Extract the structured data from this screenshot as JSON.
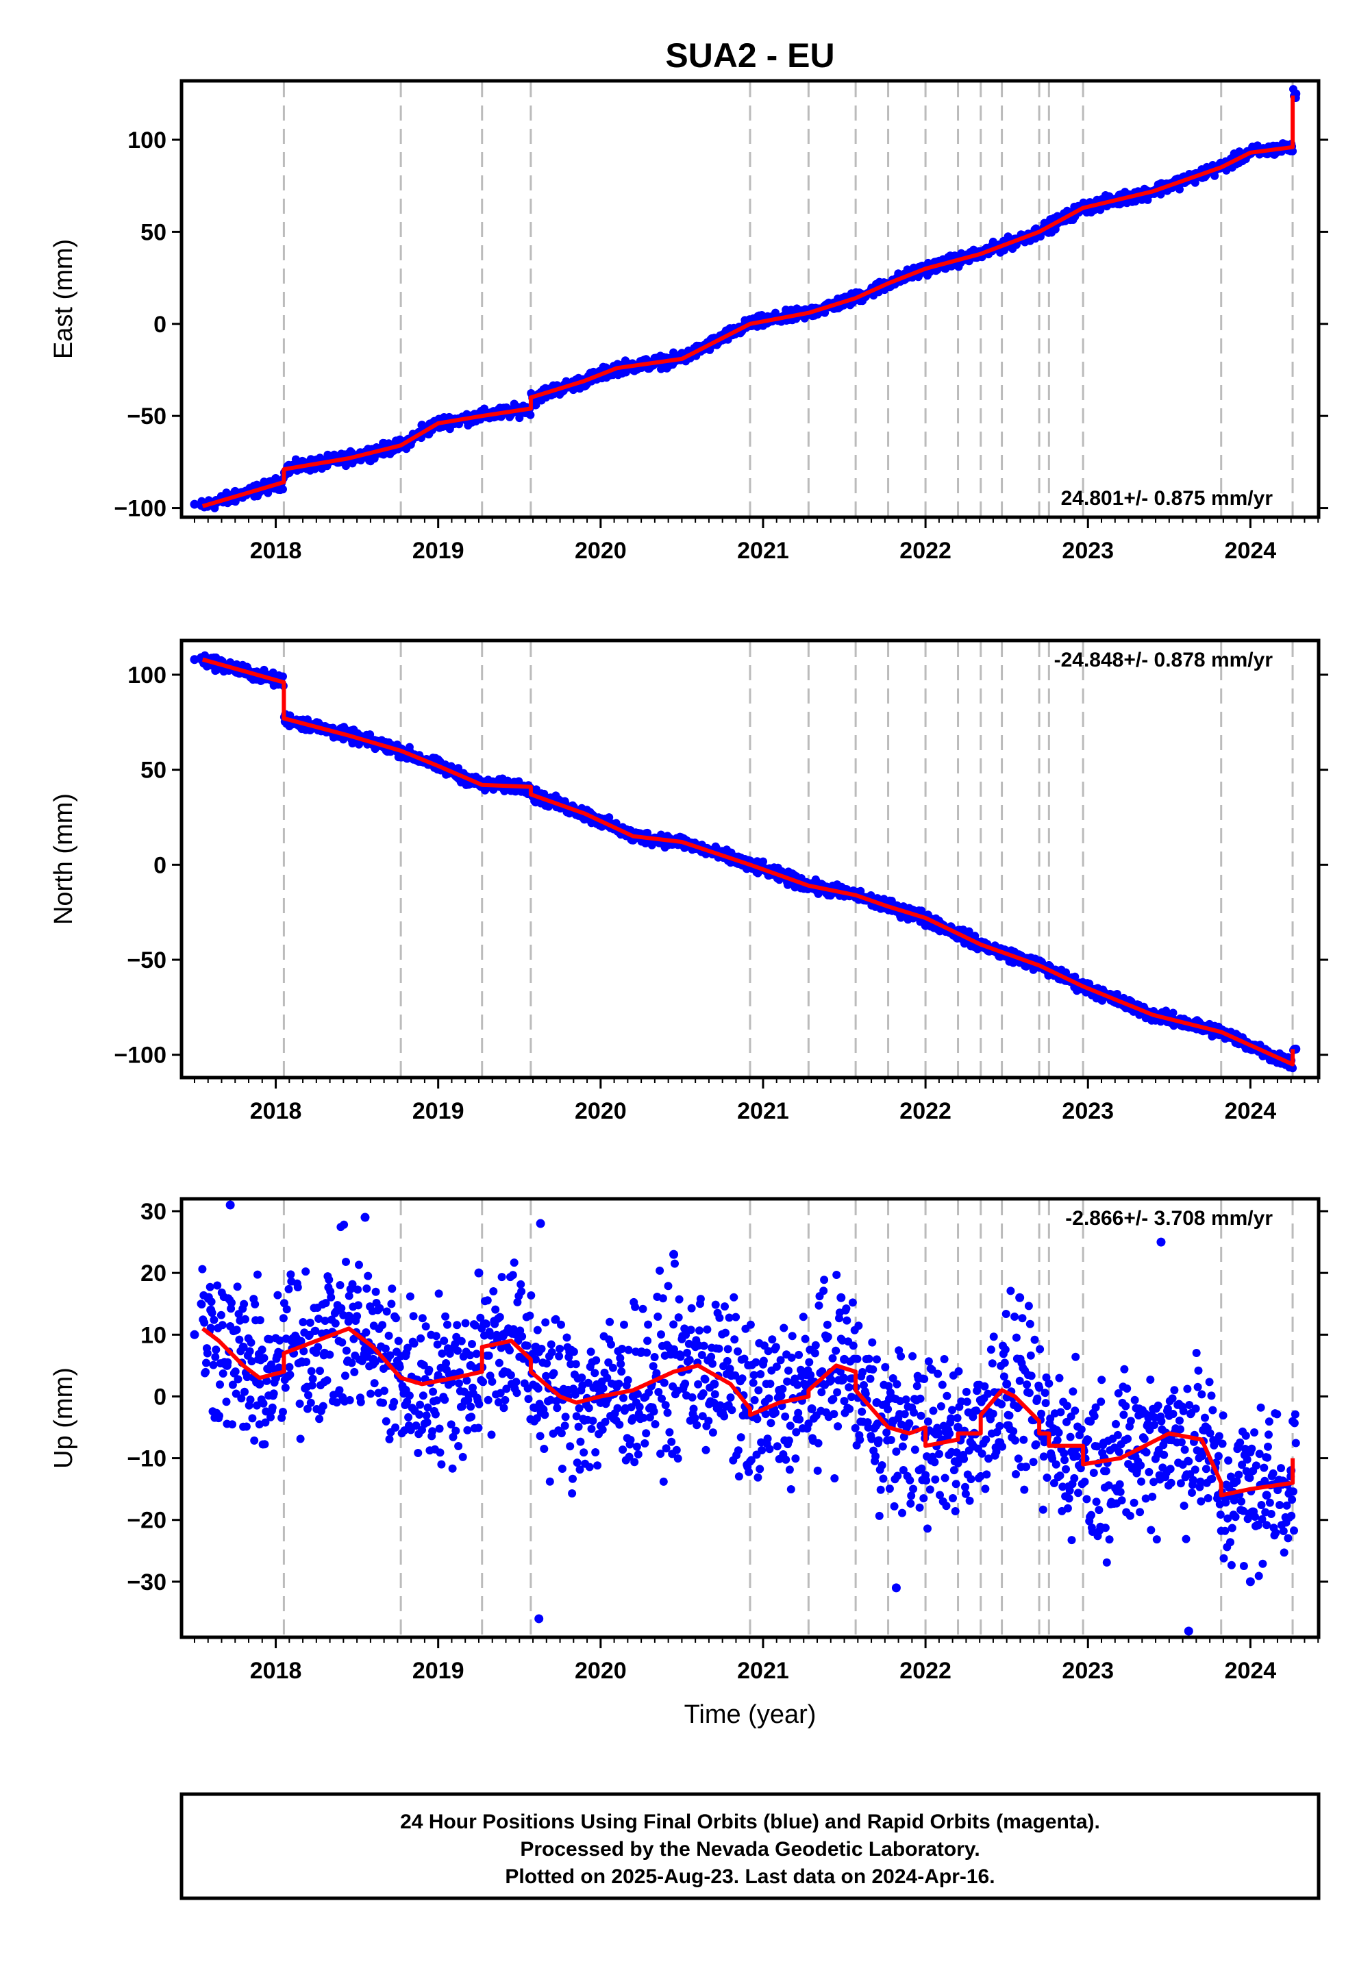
{
  "title": "SUA2 - EU",
  "colors": {
    "final_points": "#0000ff",
    "model_line": "#ff0000",
    "event_lines": "#bbbbbb",
    "frame": "#000000"
  },
  "x_axis": {
    "label": "Time (year)",
    "range": [
      2017.42,
      2024.42
    ],
    "ticks": [
      "2018",
      "2019",
      "2020",
      "2021",
      "2022",
      "2023",
      "2024"
    ]
  },
  "event_epochs": [
    2018.05,
    2018.77,
    2019.27,
    2019.57,
    2020.92,
    2021.28,
    2021.57,
    2021.77,
    2022.0,
    2022.2,
    2022.34,
    2022.47,
    2022.7,
    2022.76,
    2022.97,
    2023.82,
    2024.26
  ],
  "chart_data": [
    {
      "type": "scatter",
      "panel": "east",
      "ylabel": "East (mm)",
      "ylim": [
        -105,
        132
      ],
      "yticks": [
        "100",
        "50",
        "0",
        "−50",
        "−100"
      ],
      "annotation": "24.801+/- 0.875 mm/yr",
      "series": [
        {
          "kind": "points",
          "x": [
            2017.5,
            2017.75,
            2018.0,
            2018.08,
            2018.4,
            2018.7,
            2018.9,
            2019.3,
            2019.6,
            2019.9,
            2020.1,
            2020.5,
            2020.9,
            2021.2,
            2021.6,
            2022.0,
            2022.3,
            2022.6,
            2022.97,
            2023.4,
            2023.8,
            2024.0,
            2024.24,
            2024.28
          ],
          "y": [
            -98,
            -91,
            -84,
            -78,
            -73,
            -66,
            -55,
            -49,
            -44,
            -33,
            -24,
            -16,
            0,
            5,
            14,
            30,
            38,
            48,
            63,
            72,
            85,
            93,
            96,
            125
          ]
        },
        {
          "kind": "model",
          "x": [
            2017.55,
            2018.05,
            2018.05,
            2018.45,
            2018.77,
            2019.0,
            2019.27,
            2019.57,
            2019.57,
            2019.9,
            2020.1,
            2020.5,
            2020.92,
            2021.28,
            2021.57,
            2021.77,
            2022.0,
            2022.34,
            2022.7,
            2022.97,
            2023.4,
            2023.82,
            2024.0,
            2024.26,
            2024.26
          ],
          "y": [
            -99,
            -86,
            -79,
            -73,
            -66,
            -54,
            -50,
            -46,
            -40,
            -31,
            -24,
            -19,
            0,
            6,
            14,
            22,
            30,
            38,
            50,
            63,
            72,
            85,
            93,
            96,
            124
          ]
        }
      ]
    },
    {
      "type": "scatter",
      "panel": "north",
      "ylabel": "North (mm)",
      "ylim": [
        -112,
        118
      ],
      "yticks": [
        "100",
        "50",
        "0",
        "−50",
        "−100"
      ],
      "annotation": "-24.848+/- 0.878 mm/yr",
      "series": [
        {
          "kind": "points",
          "x": [
            2017.5,
            2017.8,
            2018.0,
            2018.06,
            2018.5,
            2018.8,
            2019.27,
            2019.5,
            2019.6,
            2019.9,
            2020.2,
            2020.5,
            2020.9,
            2021.3,
            2021.57,
            2021.9,
            2022.0,
            2022.3,
            2022.7,
            2022.97,
            2023.4,
            2023.8,
            2024.2,
            2024.28
          ],
          "y": [
            108,
            102,
            97,
            79,
            68,
            57,
            43,
            42,
            33,
            24,
            13,
            11,
            -2,
            -11,
            -15,
            -23,
            -32,
            -43,
            -54,
            -65,
            -78,
            -86,
            -104,
            -97
          ]
        },
        {
          "kind": "model",
          "x": [
            2017.55,
            2018.05,
            2018.05,
            2018.45,
            2018.77,
            2019.0,
            2019.27,
            2019.57,
            2019.57,
            2019.9,
            2020.2,
            2020.5,
            2020.92,
            2021.28,
            2021.57,
            2021.77,
            2022.0,
            2022.34,
            2022.7,
            2022.97,
            2023.4,
            2023.82,
            2024.0,
            2024.26,
            2024.26
          ],
          "y": [
            108,
            96,
            77,
            68,
            60,
            52,
            42,
            41,
            37,
            27,
            15,
            12,
            0,
            -11,
            -16,
            -22,
            -28,
            -42,
            -53,
            -64,
            -79,
            -88,
            -95,
            -105,
            -97
          ]
        }
      ]
    },
    {
      "type": "scatter",
      "panel": "up",
      "ylabel": "Up (mm)",
      "ylim": [
        -39,
        32
      ],
      "yticks": [
        "30",
        "20",
        "10",
        "0",
        "−10",
        "−20",
        "−30"
      ],
      "annotation": "-2.866+/- 3.708 mm/yr",
      "series": [
        {
          "kind": "points",
          "x": [
            2017.5,
            2017.6,
            2017.7,
            2017.8,
            2017.9,
            2018.0,
            2018.1,
            2018.3,
            2018.45,
            2018.6,
            2018.8,
            2019.0,
            2019.2,
            2019.4,
            2019.6,
            2019.8,
            2020.0,
            2020.2,
            2020.5,
            2020.7,
            2020.9,
            2021.1,
            2021.3,
            2021.5,
            2021.7,
            2021.8,
            2022.0,
            2022.2,
            2022.4,
            2022.5,
            2022.7,
            2022.9,
            2023.1,
            2023.3,
            2023.5,
            2023.7,
            2023.9,
            2024.1,
            2024.25,
            2017.72,
            2018.55,
            2019.25,
            2019.63,
            2020.45,
            2021.48,
            2022.58,
            2023.45,
            2019.62,
            2021.82,
            2023.62,
            2024.0
          ],
          "y": [
            10,
            14,
            5,
            8,
            2,
            3,
            9,
            7,
            13,
            6,
            1,
            3,
            5,
            10,
            8,
            1,
            -1,
            0,
            4,
            2,
            -3,
            1,
            -2,
            6,
            -1,
            -4,
            -6,
            -5,
            -3,
            2,
            -6,
            -9,
            -10,
            -12,
            -7,
            -9,
            -14,
            -16,
            -12,
            31,
            29,
            20,
            28,
            23,
            16,
            16,
            25,
            -36,
            -31,
            -38,
            -30
          ]
        },
        {
          "kind": "model",
          "x": [
            2017.55,
            2017.65,
            2017.8,
            2017.9,
            2018.05,
            2018.05,
            2018.25,
            2018.45,
            2018.6,
            2018.77,
            2018.9,
            2019.1,
            2019.27,
            2019.27,
            2019.45,
            2019.57,
            2019.57,
            2019.75,
            2019.85,
            2020.0,
            2020.2,
            2020.45,
            2020.6,
            2020.8,
            2020.92,
            2020.92,
            2021.1,
            2021.28,
            2021.28,
            2021.45,
            2021.57,
            2021.57,
            2021.77,
            2021.9,
            2022.0,
            2022.0,
            2022.2,
            2022.2,
            2022.34,
            2022.34,
            2022.47,
            2022.55,
            2022.7,
            2022.7,
            2022.76,
            2022.76,
            2022.97,
            2022.97,
            2023.2,
            2023.5,
            2023.7,
            2023.82,
            2023.82,
            2024.0,
            2024.26,
            2024.26
          ],
          "y": [
            11,
            9,
            5,
            3,
            4,
            7,
            9,
            11,
            8,
            3,
            2,
            3,
            4,
            8,
            9,
            6,
            4,
            0,
            -1,
            0,
            1,
            4,
            5,
            2,
            -2,
            -3,
            -1,
            0,
            1,
            5,
            4,
            1,
            -5,
            -6,
            -5,
            -8,
            -7,
            -6,
            -6,
            -3,
            1,
            0,
            -4,
            -6,
            -6,
            -8,
            -8,
            -11,
            -10,
            -6,
            -7,
            -14,
            -16,
            -15,
            -14,
            -10
          ]
        }
      ]
    }
  ],
  "footer": {
    "line1": "24 Hour Positions Using Final Orbits (blue) and Rapid Orbits (magenta).",
    "line2": "Processed by the Nevada Geodetic Laboratory.",
    "line3": "Plotted on 2025-Aug-23. Last data on 2024-Apr-16."
  }
}
